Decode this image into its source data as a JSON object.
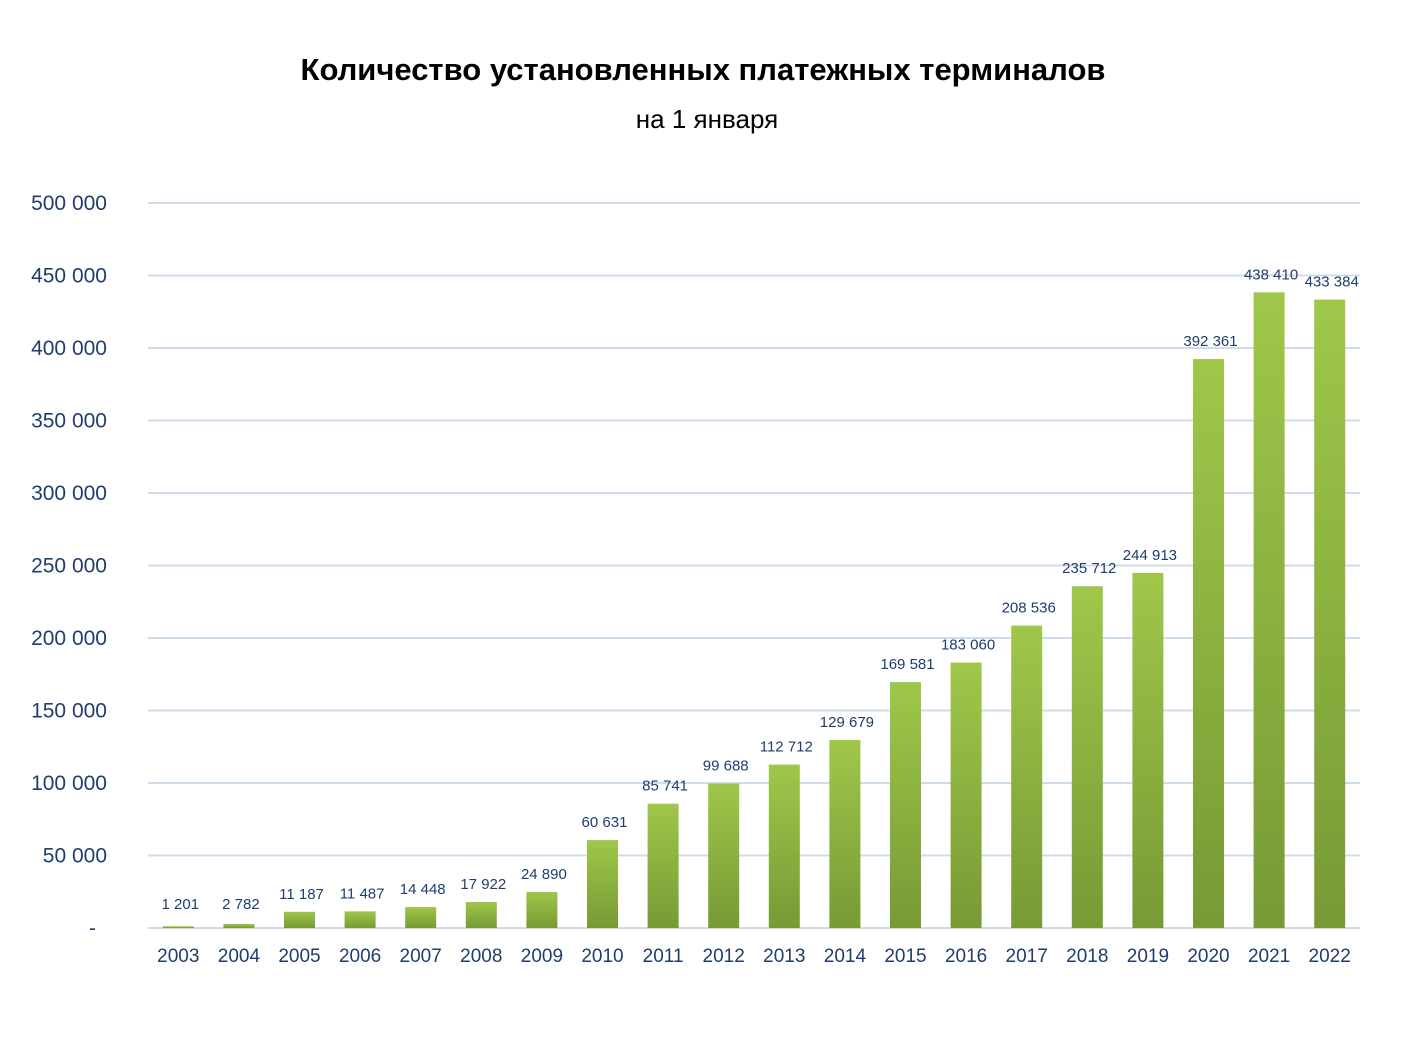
{
  "chart_data": {
    "type": "bar",
    "title": "Количество установленных платежных терминалов",
    "subtitle": "на 1 января",
    "xlabel": "",
    "ylabel": "",
    "categories": [
      "2003",
      "2004",
      "2005",
      "2006",
      "2007",
      "2008",
      "2009",
      "2010",
      "2011",
      "2012",
      "2013",
      "2014",
      "2015",
      "2016",
      "2017",
      "2018",
      "2019",
      "2020",
      "2021",
      "2022"
    ],
    "values": [
      1201,
      2782,
      11187,
      11487,
      14448,
      17922,
      24890,
      60631,
      85741,
      99688,
      112712,
      129679,
      169581,
      183060,
      208536,
      235712,
      244913,
      392361,
      438410,
      433384
    ],
    "data_labels": [
      "1 201",
      "2 782",
      "11 187",
      "11 487",
      "14 448",
      "17 922",
      "24 890",
      "60 631",
      "85 741",
      "99 688",
      "112 712",
      "129 679",
      "169 581",
      "183 060",
      "208 536",
      "235 712",
      "244 913",
      "392 361",
      "438 410",
      "433 384"
    ],
    "ylim": [
      0,
      500000
    ],
    "y_ticks": [
      0,
      50000,
      100000,
      150000,
      200000,
      250000,
      300000,
      350000,
      400000,
      450000,
      500000
    ],
    "y_tick_labels": [
      "-",
      "50 000",
      "100 000",
      "150 000",
      "200 000",
      "250 000",
      "300 000",
      "350 000",
      "400 000",
      "450 000",
      "500 000"
    ],
    "grid": true,
    "legend": "none",
    "colors": {
      "bar_top": "#9fc74a",
      "bar_bottom": "#779a35",
      "grid": "#cfdcec",
      "text": "#1f3d6e"
    }
  }
}
